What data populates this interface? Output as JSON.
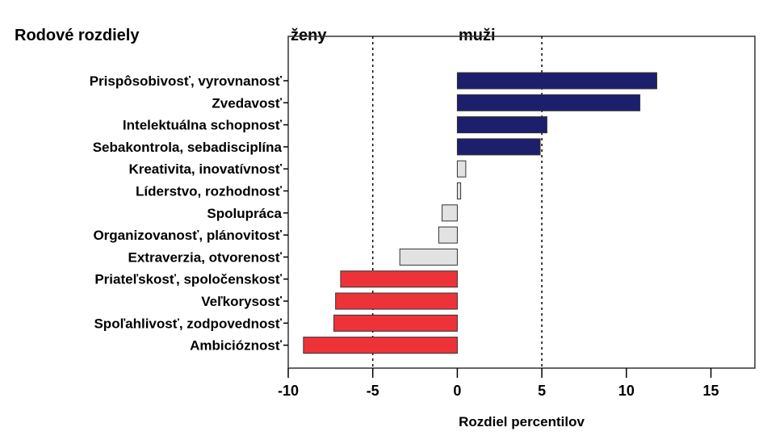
{
  "chart_data": {
    "type": "bar",
    "orientation": "horizontal",
    "title": "Rodové rozdiely",
    "group_labels": {
      "left": "ženy",
      "right": "muži"
    },
    "xlabel": "Rozdiel percentilov",
    "xlim": [
      -10,
      17.6
    ],
    "xticks": [
      -10,
      -5,
      0,
      5,
      10,
      15
    ],
    "reference_lines": [
      -5,
      5
    ],
    "grid": false,
    "categories": [
      "Prispôsobivosť, vyrovnanosť",
      "Zvedavosť",
      "Intelektuálna schopnosť",
      "Sebakontrola, sebadisciplína",
      "Kreativita, inovatívnosť",
      "Líderstvo, rozhodnosť",
      "Spolupráca",
      "Organizovanosť, plánovitosť",
      "Extraverzia, otvorenosť",
      "Priateľskosť, spoločenskosť",
      "Veľkorysosť",
      "Spoľahlivosť, zodpovednosť",
      "Ambicióznosť"
    ],
    "values": [
      11.8,
      10.8,
      5.3,
      4.9,
      0.5,
      0.2,
      -0.9,
      -1.1,
      -3.4,
      -6.9,
      -7.2,
      -7.3,
      -9.1
    ],
    "colors": {
      "men": "#1c1f6b",
      "women": "#ee3338",
      "neutral": "#e2e2e2"
    },
    "bar_groups": [
      "men",
      "men",
      "men",
      "men",
      "neutral",
      "neutral",
      "neutral",
      "neutral",
      "neutral",
      "women",
      "women",
      "women",
      "women"
    ]
  }
}
